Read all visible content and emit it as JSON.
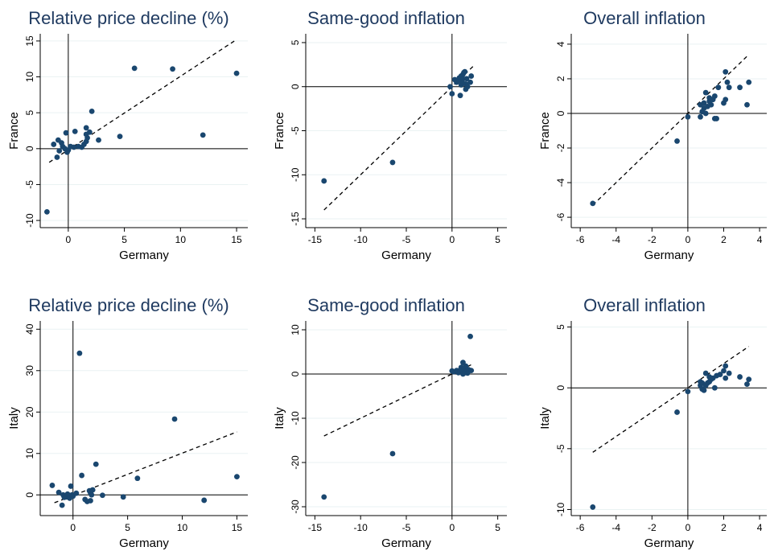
{
  "colors": {
    "point": "#1a476f",
    "title": "#1f3a60",
    "grid": "#eaf2f3",
    "axis": "#000000"
  },
  "chart_data": [
    {
      "type": "scatter",
      "title": "Relative price decline (%)",
      "xlabel": "Germany",
      "ylabel": "France",
      "xlim": [
        -2.5,
        16
      ],
      "ylim": [
        -11,
        16
      ],
      "xticks": [
        0,
        5,
        10,
        15
      ],
      "yticks": [
        -10,
        -5,
        0,
        5,
        10,
        15
      ],
      "grid": true,
      "fit_line": [
        [
          -1.7,
          -1.9
        ],
        [
          15,
          15.2
        ]
      ],
      "points": [
        [
          -1.9,
          -8.8
        ],
        [
          -1.3,
          0.6
        ],
        [
          -1.0,
          -1.2
        ],
        [
          -0.9,
          1.2
        ],
        [
          -0.8,
          -0.3
        ],
        [
          -0.6,
          0.8
        ],
        [
          -0.5,
          0.3
        ],
        [
          -0.3,
          0.0
        ],
        [
          -0.2,
          2.2
        ],
        [
          -0.1,
          -0.5
        ],
        [
          0.0,
          -0.2
        ],
        [
          0.2,
          0.3
        ],
        [
          0.5,
          0.2
        ],
        [
          0.6,
          2.4
        ],
        [
          0.9,
          0.3
        ],
        [
          1.2,
          0.2
        ],
        [
          1.4,
          0.6
        ],
        [
          1.6,
          1.0
        ],
        [
          1.6,
          2.0
        ],
        [
          1.6,
          2.9
        ],
        [
          1.7,
          1.5
        ],
        [
          1.9,
          2.3
        ],
        [
          2.1,
          5.2
        ],
        [
          2.7,
          1.2
        ],
        [
          4.6,
          1.7
        ],
        [
          5.9,
          11.2
        ],
        [
          9.3,
          11.1
        ],
        [
          12.0,
          1.9
        ],
        [
          15.0,
          10.5
        ]
      ]
    },
    {
      "type": "scatter",
      "title": "Same-good inflation",
      "xlabel": "Germany",
      "ylabel": "France",
      "xlim": [
        -16,
        6
      ],
      "ylim": [
        -16,
        6
      ],
      "xticks": [
        -15,
        -10,
        -5,
        0,
        5
      ],
      "yticks": [
        -15,
        -10,
        -5,
        0,
        5
      ],
      "grid": true,
      "fit_line": [
        [
          -14,
          -14
        ],
        [
          2.3,
          2.3
        ]
      ],
      "points": [
        [
          -14.0,
          -10.7
        ],
        [
          -6.5,
          -8.6
        ],
        [
          -0.2,
          0.0
        ],
        [
          0.0,
          -0.8
        ],
        [
          0.3,
          0.8
        ],
        [
          0.5,
          0.5
        ],
        [
          0.7,
          0.7
        ],
        [
          0.8,
          1.0
        ],
        [
          0.9,
          -1.0
        ],
        [
          1.0,
          0.2
        ],
        [
          1.0,
          1.2
        ],
        [
          1.1,
          0.6
        ],
        [
          1.2,
          0.9
        ],
        [
          1.2,
          1.4
        ],
        [
          1.3,
          1.6
        ],
        [
          1.4,
          1.7
        ],
        [
          1.5,
          -0.3
        ],
        [
          1.5,
          0.3
        ],
        [
          1.6,
          0.9
        ],
        [
          1.7,
          0.0
        ],
        [
          2.0,
          0.5
        ],
        [
          2.1,
          1.2
        ]
      ]
    },
    {
      "type": "scatter",
      "title": "Overall inflation",
      "xlabel": "Germany",
      "ylabel": "France",
      "xlim": [
        -6.5,
        4.4
      ],
      "ylim": [
        -6.6,
        4.6
      ],
      "xticks": [
        -6,
        -4,
        -2,
        0,
        2,
        4
      ],
      "yticks": [
        -6,
        -4,
        -2,
        0,
        2,
        4
      ],
      "grid": true,
      "fit_line": [
        [
          -5.3,
          -5.3
        ],
        [
          3.4,
          3.4
        ]
      ],
      "points": [
        [
          -5.3,
          -5.2
        ],
        [
          -0.6,
          -1.6
        ],
        [
          0.0,
          -0.2
        ],
        [
          0.7,
          -0.2
        ],
        [
          0.7,
          0.5
        ],
        [
          0.8,
          0.1
        ],
        [
          0.9,
          0.3
        ],
        [
          0.9,
          0.6
        ],
        [
          1.0,
          0.0
        ],
        [
          1.0,
          1.2
        ],
        [
          1.1,
          0.4
        ],
        [
          1.2,
          0.7
        ],
        [
          1.2,
          0.9
        ],
        [
          1.3,
          0.5
        ],
        [
          1.4,
          0.8
        ],
        [
          1.5,
          1.0
        ],
        [
          1.5,
          -0.3
        ],
        [
          1.6,
          -0.3
        ],
        [
          1.7,
          1.5
        ],
        [
          2.0,
          0.6
        ],
        [
          2.1,
          0.8
        ],
        [
          2.1,
          2.4
        ],
        [
          2.2,
          1.8
        ],
        [
          2.3,
          1.5
        ],
        [
          2.9,
          1.5
        ],
        [
          3.3,
          0.5
        ],
        [
          3.4,
          1.8
        ]
      ]
    },
    {
      "type": "scatter",
      "title": "Relative price decline (%)",
      "xlabel": "Germany",
      "ylabel": "Italy",
      "xlim": [
        -3,
        16
      ],
      "ylim": [
        -5,
        42
      ],
      "xticks": [
        0,
        5,
        10,
        15
      ],
      "yticks": [
        0,
        10,
        20,
        30,
        40
      ],
      "grid": true,
      "fit_line": [
        [
          -1.7,
          -1.9
        ],
        [
          15,
          15.2
        ]
      ],
      "points": [
        [
          -1.9,
          2.3
        ],
        [
          -1.3,
          0.6
        ],
        [
          -1.0,
          -2.5
        ],
        [
          -0.9,
          0.0
        ],
        [
          -0.8,
          -0.6
        ],
        [
          -0.6,
          -0.5
        ],
        [
          -0.5,
          0.2
        ],
        [
          -0.3,
          -0.8
        ],
        [
          -0.2,
          2.1
        ],
        [
          -0.1,
          0.0
        ],
        [
          0.0,
          -0.3
        ],
        [
          0.3,
          0.4
        ],
        [
          0.6,
          34.2
        ],
        [
          0.8,
          4.7
        ],
        [
          1.1,
          -1.1
        ],
        [
          1.3,
          -1.6
        ],
        [
          1.5,
          1.0
        ],
        [
          1.6,
          -1.4
        ],
        [
          1.6,
          0.5
        ],
        [
          1.7,
          0.0
        ],
        [
          1.8,
          1.2
        ],
        [
          2.1,
          7.4
        ],
        [
          2.7,
          -0.1
        ],
        [
          4.6,
          -0.5
        ],
        [
          5.9,
          4.0
        ],
        [
          9.3,
          18.3
        ],
        [
          12.0,
          -1.3
        ],
        [
          15.0,
          4.4
        ]
      ]
    },
    {
      "type": "scatter",
      "title": "Same-good inflation",
      "xlabel": "Germany",
      "ylabel": "Italy",
      "xlim": [
        -16,
        6
      ],
      "ylim": [
        -32,
        12
      ],
      "xticks": [
        -15,
        -10,
        -5,
        0,
        5
      ],
      "yticks": [
        -30,
        -20,
        -10,
        0,
        10
      ],
      "grid": true,
      "fit_line": [
        [
          -14,
          -14
        ],
        [
          2.3,
          2.3
        ]
      ],
      "points": [
        [
          -14.0,
          -27.8
        ],
        [
          -6.5,
          -18.0
        ],
        [
          0.0,
          0.7
        ],
        [
          0.2,
          0.5
        ],
        [
          0.5,
          0.8
        ],
        [
          0.7,
          0.3
        ],
        [
          0.9,
          0.9
        ],
        [
          1.0,
          1.5
        ],
        [
          1.1,
          0.6
        ],
        [
          1.2,
          0.0
        ],
        [
          1.2,
          2.6
        ],
        [
          1.3,
          1.2
        ],
        [
          1.4,
          0.3
        ],
        [
          1.5,
          1.8
        ],
        [
          1.6,
          0.7
        ],
        [
          1.7,
          0.2
        ],
        [
          1.8,
          1.0
        ],
        [
          2.0,
          8.5
        ],
        [
          2.1,
          0.8
        ]
      ]
    },
    {
      "type": "scatter",
      "title": "Overall inflation",
      "xlabel": "Germany",
      "ylabel": "Italy",
      "xlim": [
        -6.5,
        4.4
      ],
      "ylim": [
        -10.5,
        5.5
      ],
      "xticks": [
        -6,
        -4,
        -2,
        0,
        2,
        4
      ],
      "yticks": [
        -10,
        -5,
        0,
        5
      ],
      "grid": true,
      "fit_line": [
        [
          -5.3,
          -5.3
        ],
        [
          3.4,
          3.4
        ]
      ],
      "points": [
        [
          -5.3,
          -9.8
        ],
        [
          -0.6,
          -2.0
        ],
        [
          0.0,
          -0.3
        ],
        [
          0.7,
          0.2
        ],
        [
          0.7,
          0.5
        ],
        [
          0.8,
          -0.1
        ],
        [
          0.8,
          0.4
        ],
        [
          0.9,
          -0.2
        ],
        [
          1.0,
          0.2
        ],
        [
          1.0,
          1.2
        ],
        [
          1.1,
          0.4
        ],
        [
          1.2,
          0.9
        ],
        [
          1.2,
          0.5
        ],
        [
          1.3,
          0.7
        ],
        [
          1.4,
          0.8
        ],
        [
          1.5,
          0.0
        ],
        [
          1.6,
          1.0
        ],
        [
          1.8,
          1.1
        ],
        [
          2.0,
          1.4
        ],
        [
          2.1,
          0.8
        ],
        [
          2.1,
          1.8
        ],
        [
          2.3,
          1.2
        ],
        [
          2.9,
          0.9
        ],
        [
          3.3,
          0.3
        ],
        [
          3.4,
          0.7
        ]
      ]
    }
  ]
}
